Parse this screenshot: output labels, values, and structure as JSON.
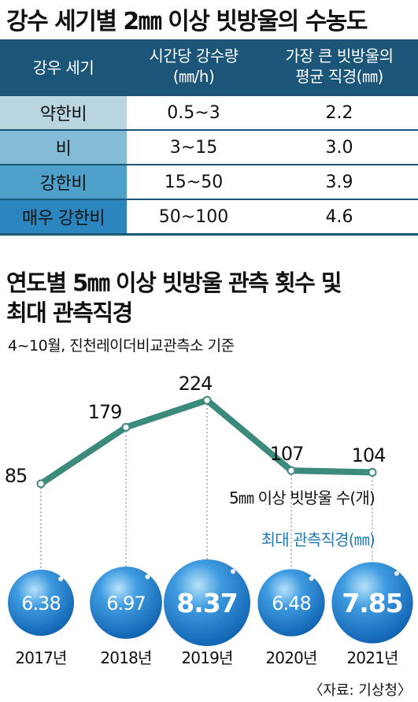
{
  "table": {
    "title": "강수 세기별 2㎜ 이상 빗방울의 수농도",
    "headers": [
      [
        "강우 세기"
      ],
      [
        "시간당 강수량",
        "(㎜/h)"
      ],
      [
        "가장 큰 빗방울의",
        "평균 직경(㎜)"
      ]
    ],
    "rows": [
      {
        "intensity": "약한비",
        "rate": "0.5~3",
        "diameter": "2.2",
        "color": "#b9d5e1"
      },
      {
        "intensity": "비",
        "rate": "3~15",
        "diameter": "3.0",
        "color": "#84bcd6"
      },
      {
        "intensity": "강한비",
        "rate": "15~50",
        "diameter": "3.9",
        "color": "#4e9fca"
      },
      {
        "intensity": "매우 강한비",
        "rate": "50~100",
        "diameter": "4.6",
        "color": "#2b86bf"
      }
    ]
  },
  "chart_title": [
    "연도별 5㎜ 이상 빗방울 관측 횟수 및",
    "최대 관측직경"
  ],
  "chart_subtitle": "4~10월, 진천레이더비교관측소 기준",
  "source": "〈자료: 기상청〉",
  "colors": {
    "header": "#1b5679",
    "line": "#3b8a7b",
    "bubble": "#1a74c6",
    "label_blue": "#1f79b5"
  },
  "chart_data": {
    "type": "line",
    "categories": [
      "2017년",
      "2018년",
      "2019년",
      "2020년",
      "2021년"
    ],
    "series": [
      {
        "name": "5㎜ 이상 빗방울 수(개)",
        "values": [
          85,
          179,
          224,
          107,
          104
        ]
      },
      {
        "name": "최대 관측직경(㎜)",
        "values": [
          6.38,
          6.97,
          8.37,
          6.48,
          7.85
        ],
        "value_labels": [
          "6.38",
          "6.97",
          "8.37",
          "6.48",
          "7.85"
        ]
      }
    ],
    "count_labels": [
      "85",
      "179",
      "224",
      "107",
      "104"
    ]
  }
}
